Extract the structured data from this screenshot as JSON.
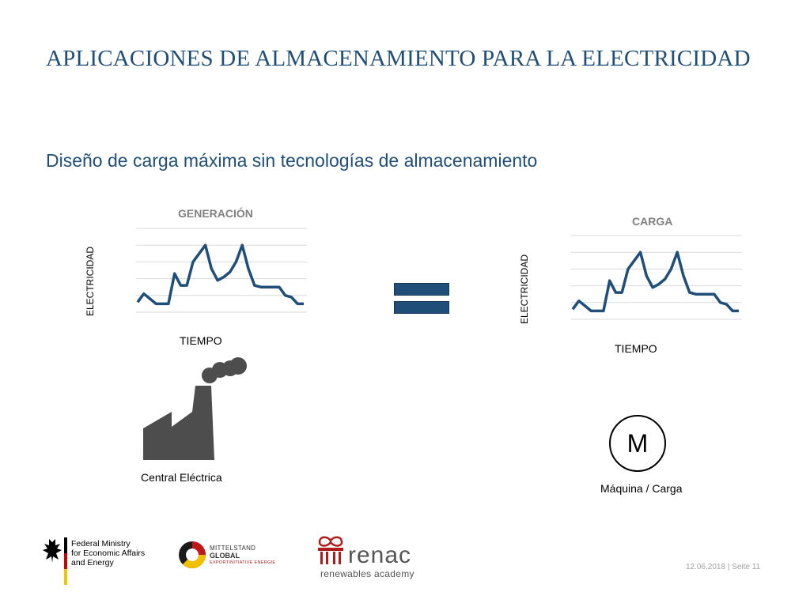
{
  "slide": {
    "title": "APLICACIONES DE ALMACENAMIENTO PARA LA ELECTRICIDAD",
    "subtitle": "Diseño de carga máxima sin tecnologías de almacenamiento"
  },
  "chart_data": [
    {
      "type": "line",
      "title": "GENERACIÓN",
      "xlabel": "TIEMPO",
      "ylabel": "ELECTRICIDAD",
      "grid": true,
      "ylim": [
        0,
        5
      ],
      "series": [
        {
          "values": [
            0.6,
            1.1,
            0.8,
            0.5,
            0.5,
            0.5,
            2.3,
            1.6,
            1.6,
            3.0,
            3.5,
            4.0,
            2.6,
            1.9,
            2.1,
            2.4,
            3.0,
            4.0,
            2.6,
            1.6,
            1.5,
            1.5,
            1.5,
            1.5,
            1.0,
            0.9,
            0.5,
            0.5
          ]
        }
      ]
    },
    {
      "type": "line",
      "title": "CARGA",
      "xlabel": "TIEMPO",
      "ylabel": "ELECTRICIDAD",
      "grid": true,
      "ylim": [
        0,
        5
      ],
      "series": [
        {
          "values": [
            0.6,
            1.1,
            0.8,
            0.5,
            0.5,
            0.5,
            2.3,
            1.6,
            1.6,
            3.0,
            3.5,
            4.0,
            2.6,
            1.9,
            2.1,
            2.4,
            3.0,
            4.0,
            2.6,
            1.6,
            1.5,
            1.5,
            1.5,
            1.5,
            1.0,
            0.9,
            0.5,
            0.5
          ]
        }
      ]
    }
  ],
  "left": {
    "caption": "Central Eléctrica",
    "icon": "factory-icon"
  },
  "right": {
    "caption": "Máquina / Carga",
    "motor_letter": "M",
    "icon": "motor-icon"
  },
  "colors": {
    "accent": "#1f4e79",
    "grid": "#d9d9d9",
    "icon": "#4d4d4d"
  },
  "footer": {
    "date_page": "12.06.2018 | Seite 11",
    "bmwi": [
      "Federal Ministry",
      "for Economic Affairs",
      "and Energy"
    ],
    "mittelstand": [
      "MITTELSTAND",
      "GLOBAL",
      "EXPORTINITIATIVE ENERGIE"
    ],
    "renac": {
      "name": "renac",
      "sub": "renewables academy"
    }
  }
}
